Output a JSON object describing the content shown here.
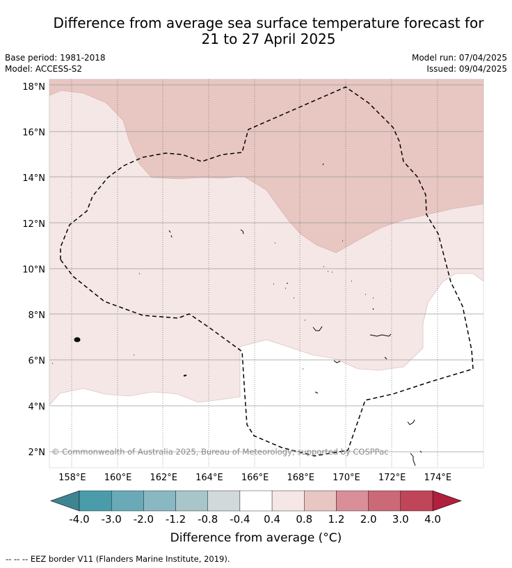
{
  "title": {
    "line1": "Difference from average sea surface temperature forecast for",
    "line2": "21 to 27 April 2025"
  },
  "meta": {
    "base_period": "Base period: 1981-2018",
    "model": "Model: ACCESS-S2",
    "model_run": "Model run: 07/04/2025",
    "issued": "Issued: 09/04/2025"
  },
  "map": {
    "lon_range": [
      157,
      176
    ],
    "lat_range": [
      1.3,
      18.3
    ],
    "lon_ticks": [
      {
        "v": 158,
        "label": "158°E"
      },
      {
        "v": 160,
        "label": "160°E"
      },
      {
        "v": 162,
        "label": "162°E"
      },
      {
        "v": 164,
        "label": "164°E"
      },
      {
        "v": 166,
        "label": "166°E"
      },
      {
        "v": 168,
        "label": "168°E"
      },
      {
        "v": 170,
        "label": "170°E"
      },
      {
        "v": 172,
        "label": "172°E"
      },
      {
        "v": 174,
        "label": "174°E"
      }
    ],
    "lat_ticks": [
      {
        "v": 2,
        "label": "2°N"
      },
      {
        "v": 4,
        "label": "4°N"
      },
      {
        "v": 6,
        "label": "6°N"
      },
      {
        "v": 8,
        "label": "8°N"
      },
      {
        "v": 10,
        "label": "10°N"
      },
      {
        "v": 12,
        "label": "12°N"
      },
      {
        "v": 14,
        "label": "14°N"
      },
      {
        "v": 16,
        "label": "16°N"
      },
      {
        "v": 18,
        "label": "18°N"
      }
    ],
    "copyright": "© Commonwealth of Australia 2025, Bureau of Meteorology; supported by COSPPac",
    "colors": {
      "band_0_4_to_0_8": "#f5e7e6",
      "band_0_8_to_1_2": "#e8c6c2",
      "eez": "#000000"
    }
  },
  "colorbar": {
    "title": "Difference from average (°C)",
    "labels": [
      "-4.0",
      "-3.0",
      "-2.0",
      "-1.2",
      "-0.8",
      "-0.4",
      "0.4",
      "0.8",
      "1.2",
      "2.0",
      "3.0",
      "4.0"
    ],
    "colors": [
      "#4a9cab",
      "#6aaab8",
      "#8ab8c2",
      "#a8c5c9",
      "#d1d9da",
      "#ffffff",
      "#f5e7e6",
      "#e8c6c2",
      "#d98e98",
      "#cc6977",
      "#c04559"
    ],
    "extend_low": "#3e8593",
    "extend_high": "#b01f3c"
  },
  "footer": "-- -- -- EEZ border V11 (Flanders Marine Institute, 2019)."
}
